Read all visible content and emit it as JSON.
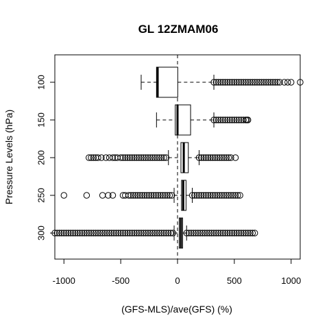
{
  "chart_data": {
    "type": "boxplot",
    "orientation": "horizontal",
    "title": "GL 12ZMAM06",
    "xlabel": "(GFS-MLS)/ave(GFS) (%)",
    "ylabel": "Pressure Levels (hPa)",
    "xlim": [
      -1080,
      1080
    ],
    "xticks": [
      -1000,
      -500,
      0,
      500,
      1000
    ],
    "xtick_labels": [
      "-1000",
      "-500",
      "0",
      "500",
      "1000"
    ],
    "reference_line": {
      "x": 0,
      "style": "dashed"
    },
    "categories": [
      "100",
      "150",
      "200",
      "250",
      "300"
    ],
    "boxes": [
      {
        "level": "100",
        "whisker_low": -320,
        "q1": -185,
        "median": -175,
        "q3": 2,
        "whisker_high": 320,
        "outliers_low": [],
        "outliers_high": [
          320,
          340,
          360,
          380,
          400,
          420,
          440,
          460,
          480,
          500,
          520,
          540,
          560,
          580,
          600,
          620,
          640,
          660,
          680,
          700,
          720,
          740,
          760,
          780,
          800,
          820,
          840,
          860,
          880,
          900,
          940,
          970,
          1000,
          1080
        ]
      },
      {
        "level": "150",
        "whisker_low": -185,
        "q1": -20,
        "median": 0,
        "q3": 115,
        "whisker_high": 320,
        "outliers_low": [],
        "outliers_high": [
          320,
          340,
          360,
          380,
          400,
          420,
          440,
          460,
          480,
          500,
          520,
          540,
          560,
          580,
          600,
          610,
          620
        ]
      },
      {
        "level": "200",
        "whisker_low": -80,
        "q1": 30,
        "median": 55,
        "q3": 95,
        "whisker_high": 190,
        "outliers_low": [
          -780,
          -760,
          -740,
          -720,
          -700,
          -670,
          -630,
          -600,
          -570,
          -550,
          -530,
          -500,
          -480,
          -460,
          -440,
          -420,
          -400,
          -380,
          -360,
          -340,
          -320,
          -300,
          -280,
          -260,
          -240,
          -220,
          -200,
          -180,
          -160,
          -140,
          -120,
          -100
        ],
        "outliers_high": [
          190,
          210,
          230,
          250,
          270,
          290,
          310,
          330,
          350,
          370,
          390,
          410,
          430,
          450,
          470,
          510
        ]
      },
      {
        "level": "250",
        "whisker_low": -30,
        "q1": 35,
        "median": 50,
        "q3": 75,
        "whisker_high": 130,
        "outliers_low": [
          -1000,
          -800,
          -660,
          -610,
          -570,
          -480,
          -460,
          -430,
          -410,
          -390,
          -370,
          -350,
          -330,
          -310,
          -290,
          -270,
          -250,
          -230,
          -210,
          -190,
          -170,
          -150,
          -130,
          -110,
          -90,
          -70,
          -50
        ],
        "outliers_high": [
          130,
          150,
          170,
          190,
          210,
          230,
          250,
          270,
          290,
          310,
          330,
          350,
          370,
          390,
          410,
          430,
          450,
          470,
          490,
          510,
          530,
          550
        ]
      },
      {
        "level": "300",
        "whisker_low": -30,
        "q1": 15,
        "median": 30,
        "q3": 45,
        "whisker_high": 80,
        "outliers_low": [
          -1080,
          -1060,
          -1040,
          -1020,
          -1000,
          -980,
          -960,
          -940,
          -920,
          -900,
          -880,
          -860,
          -840,
          -820,
          -800,
          -780,
          -760,
          -740,
          -720,
          -700,
          -680,
          -660,
          -640,
          -620,
          -600,
          -580,
          -560,
          -540,
          -520,
          -500,
          -480,
          -460,
          -440,
          -420,
          -400,
          -380,
          -360,
          -340,
          -320,
          -300,
          -280,
          -260,
          -240,
          -220,
          -200,
          -180,
          -160,
          -140,
          -120,
          -100,
          -80,
          -60,
          -40
        ],
        "outliers_high": [
          80,
          100,
          120,
          140,
          160,
          180,
          200,
          220,
          240,
          260,
          280,
          300,
          320,
          340,
          360,
          380,
          400,
          420,
          440,
          460,
          480,
          500,
          520,
          540,
          560,
          580,
          600,
          620,
          640,
          660,
          680
        ]
      }
    ],
    "grid": false,
    "legend": "none",
    "colors": {
      "stroke": "#000000",
      "background": "#ffffff"
    }
  }
}
